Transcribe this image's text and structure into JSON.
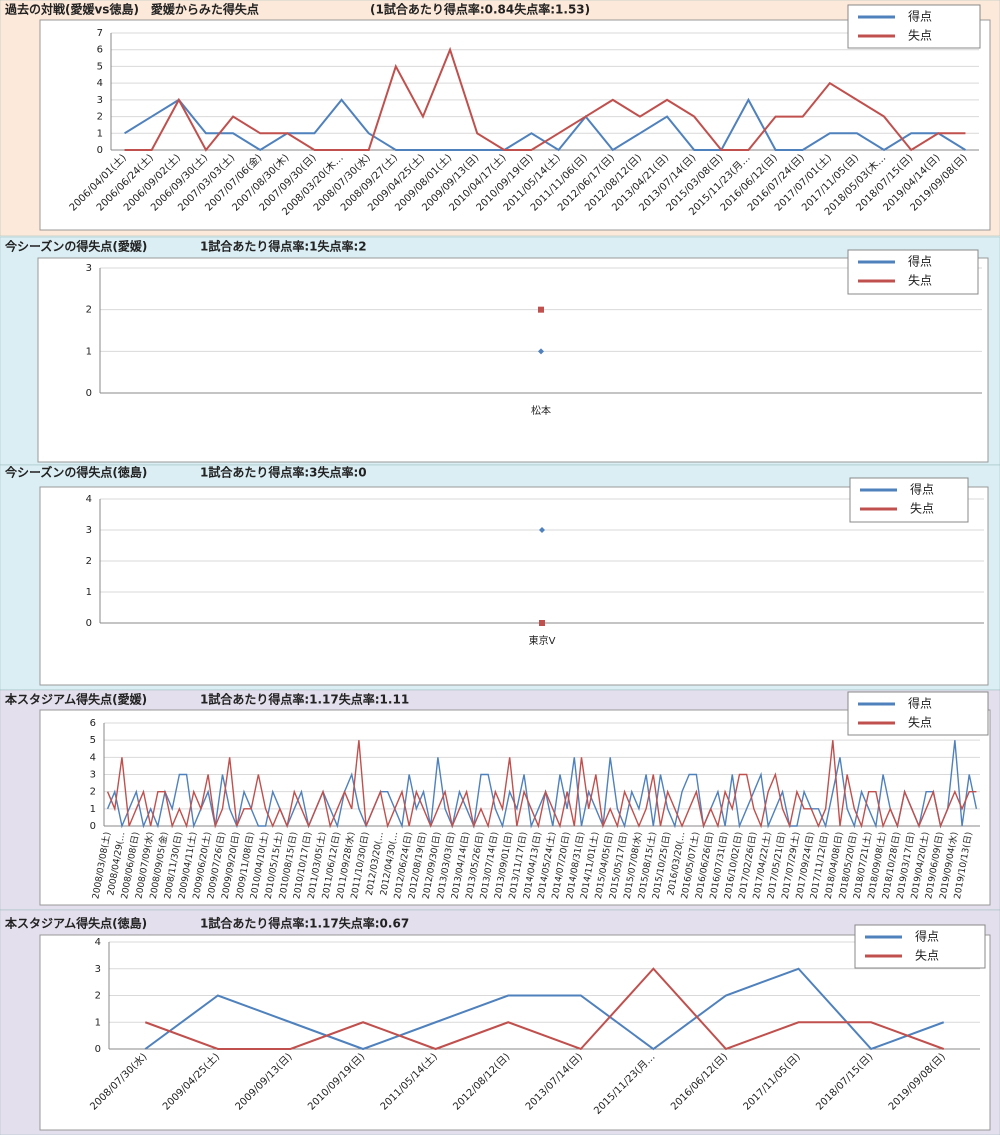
{
  "chart_data": [
    {
      "type": "line",
      "title": "過去の対戦(愛媛vs徳島)　愛媛からみた得失点",
      "subtitle": "(1試合あたり得点率:0.84失点率:1.53)",
      "categories": [
        "2006/04/01(土)",
        "2006/06/24(土)",
        "2006/09/02(土)",
        "2006/09/30(土)",
        "2007/03/03(土)",
        "2007/07/06(金)",
        "2007/08/30(木)",
        "2007/09/30(日)",
        "2008/03/20(木…",
        "2008/07/30(水)",
        "2008/09/27(土)",
        "2009/04/25(土)",
        "2009/08/01(土)",
        "2009/09/13(日)",
        "2010/04/17(土)",
        "2010/09/19(日)",
        "2011/05/14(土)",
        "2011/11/06(日)",
        "2012/06/17(日)",
        "2012/08/12(日)",
        "2013/04/21(日)",
        "2013/07/14(日)",
        "2015/03/08(日)",
        "2015/11/23(月…",
        "2016/06/12(日)",
        "2016/07/24(日)",
        "2017/07/01(土)",
        "2017/11/05(日)",
        "2018/05/03(木…",
        "2018/07/15(日)",
        "2019/04/14(日)",
        "2019/09/08(日)"
      ],
      "series": [
        {
          "name": "得点",
          "color": "#4f81bd",
          "values": [
            1,
            2,
            3,
            1,
            1,
            0,
            1,
            1,
            3,
            1,
            0,
            0,
            0,
            0,
            0,
            1,
            0,
            2,
            0,
            1,
            2,
            0,
            0,
            3,
            0,
            0,
            1,
            1,
            0,
            1,
            1,
            0
          ]
        },
        {
          "name": "失点",
          "color": "#c0504d",
          "values": [
            0,
            0,
            3,
            0,
            2,
            1,
            1,
            0,
            0,
            0,
            5,
            2,
            6,
            1,
            0,
            0,
            1,
            2,
            3,
            2,
            3,
            2,
            0,
            0,
            2,
            2,
            4,
            3,
            2,
            0,
            1,
            1
          ]
        }
      ],
      "ylim": [
        0,
        7
      ],
      "yticks": [
        0,
        1,
        2,
        3,
        4,
        5,
        6,
        7
      ],
      "grid": true
    },
    {
      "type": "line",
      "title": "今シーズンの得失点(愛媛)",
      "subtitle": "1試合あたり得点率:1失点率:2",
      "categories": [
        "松本"
      ],
      "markers": true,
      "series": [
        {
          "name": "得点",
          "color": "#4f81bd",
          "marker": "diamond",
          "values": [
            1
          ]
        },
        {
          "name": "失点",
          "color": "#c0504d",
          "marker": "square",
          "values": [
            2
          ]
        }
      ],
      "ylim": [
        0,
        3
      ],
      "yticks": [
        0,
        1,
        2,
        3
      ],
      "grid": true
    },
    {
      "type": "line",
      "title": "今シーズンの得失点(徳島)",
      "subtitle": "1試合あたり得点率:3失点率:0",
      "categories": [
        "東京V"
      ],
      "markers": true,
      "series": [
        {
          "name": "得点",
          "color": "#4f81bd",
          "marker": "diamond",
          "values": [
            3
          ]
        },
        {
          "name": "失点",
          "color": "#c0504d",
          "marker": "square",
          "values": [
            0
          ]
        }
      ],
      "ylim": [
        0,
        4
      ],
      "yticks": [
        0,
        1,
        2,
        3,
        4
      ],
      "grid": true
    },
    {
      "type": "line",
      "title": "本スタジアム得失点(愛媛)",
      "subtitle": "1試合あたり得点率:1.17失点率:1.11",
      "categories": [
        "2008/03/08(土)",
        null,
        "2008/04/29(…",
        null,
        "2008/06/08(日)",
        null,
        "2008/07/09(水)",
        null,
        "2008/09/05(金)",
        null,
        "2008/11/30(日)",
        null,
        "2009/04/11(土)",
        null,
        "2009/06/20(土)",
        null,
        "2009/07/26(日)",
        null,
        "2009/09/20(日)",
        null,
        "2009/11/08(日)",
        null,
        "2010/04/10(土)",
        null,
        "2010/05/15(土)",
        null,
        "2010/08/15(日)",
        null,
        "2010/10/17(日)",
        null,
        "2011/03/05(土)",
        null,
        "2011/06/12(日)",
        null,
        "2011/09/28(水)",
        null,
        "2011/10/30(日)",
        null,
        "2012/03/20(…",
        null,
        "2012/04/30(…",
        null,
        "2012/06/24(日)",
        null,
        "2012/08/19(日)",
        null,
        "2012/09/30(日)",
        null,
        "2013/03/03(日)",
        null,
        "2013/04/14(日)",
        null,
        "2013/05/26(日)",
        null,
        "2013/07/14(日)",
        null,
        "2013/09/01(日)",
        null,
        "2013/11/17(日)",
        null,
        "2014/04/13(日)",
        null,
        "2014/05/24(土)",
        null,
        "2014/07/20(日)",
        null,
        "2014/08/31(日)",
        null,
        "2014/11/01(土)",
        null,
        "2015/04/05(日)",
        null,
        "2015/05/17(日)",
        null,
        "2015/07/08(水)",
        null,
        "2015/08/15(土)",
        null,
        "2015/10/25(日)",
        null,
        "2016/03/20(…",
        null,
        "2016/05/07(土)",
        null,
        "2016/06/26(日)",
        null,
        "2016/07/31(日)",
        null,
        "2016/10/02(日)",
        null,
        "2017/02/26(日)",
        null,
        "2017/04/22(土)",
        null,
        "2017/05/21(日)",
        null,
        "2017/07/29(土)",
        null,
        "2017/09/24(日)",
        null,
        "2017/11/12(日)",
        null,
        "2018/04/08(日)",
        null,
        "2018/05/20(日)",
        null,
        "2018/07/21(土)",
        null,
        "2018/09/08(土)",
        null,
        "2018/10/28(日)",
        null,
        "2019/03/17(日)",
        null,
        "2019/04/20(土)",
        null,
        "2019/06/09(日)",
        null,
        "2019/09/04(水)",
        null,
        "2019/10/13(日)",
        null
      ],
      "series": [
        {
          "name": "得点",
          "color": "#4f81bd",
          "values": [
            1,
            2,
            0,
            1,
            2,
            0,
            1,
            0,
            2,
            1,
            3,
            3,
            0,
            1,
            2,
            0,
            3,
            1,
            0,
            2,
            1,
            0,
            0,
            2,
            1,
            0,
            1,
            2,
            0,
            1,
            2,
            1,
            0,
            2,
            3,
            1,
            0,
            1,
            2,
            2,
            1,
            0,
            3,
            1,
            2,
            0,
            4,
            1,
            0,
            2,
            1,
            0,
            3,
            3,
            1,
            0,
            2,
            1,
            3,
            0,
            1,
            2,
            0,
            3,
            1,
            4,
            0,
            2,
            1,
            0,
            4,
            1,
            0,
            2,
            1,
            3,
            0,
            3,
            1,
            0,
            2,
            3,
            3,
            0,
            1,
            2,
            0,
            3,
            0,
            1,
            2,
            3,
            0,
            1,
            2,
            0,
            0,
            2,
            1,
            1,
            0,
            2,
            4,
            1,
            0,
            2,
            1,
            0,
            3,
            1,
            0,
            2,
            1,
            0,
            2,
            2,
            0,
            1,
            5,
            0,
            3,
            1
          ]
        },
        {
          "name": "失点",
          "color": "#c0504d",
          "values": [
            2,
            1,
            4,
            0,
            1,
            2,
            0,
            2,
            2,
            0,
            1,
            0,
            2,
            1,
            3,
            0,
            1,
            4,
            0,
            1,
            1,
            3,
            1,
            0,
            1,
            0,
            2,
            1,
            0,
            1,
            2,
            0,
            1,
            2,
            1,
            5,
            0,
            1,
            2,
            0,
            1,
            2,
            0,
            2,
            1,
            0,
            1,
            2,
            0,
            1,
            2,
            0,
            1,
            0,
            2,
            1,
            4,
            0,
            2,
            1,
            0,
            2,
            1,
            0,
            2,
            0,
            4,
            1,
            3,
            0,
            1,
            0,
            2,
            1,
            0,
            1,
            3,
            0,
            2,
            1,
            0,
            1,
            2,
            0,
            1,
            0,
            2,
            1,
            3,
            3,
            1,
            0,
            2,
            3,
            1,
            0,
            2,
            1,
            1,
            0,
            1,
            5,
            0,
            3,
            1,
            0,
            2,
            2,
            0,
            1,
            0,
            2,
            1,
            0,
            1,
            2,
            0,
            1,
            2,
            1,
            2,
            2
          ]
        }
      ],
      "ylim": [
        0,
        6
      ],
      "yticks": [
        0,
        1,
        2,
        3,
        4,
        5,
        6
      ],
      "grid": true
    },
    {
      "type": "line",
      "title": "本スタジアム得失点(徳島)",
      "subtitle": "1試合あたり得点率:1.17失点率:0.67",
      "categories": [
        "2008/07/30(水)",
        "2009/04/25(土)",
        "2009/09/13(日)",
        "2010/09/19(日)",
        "2011/05/14(土)",
        "2012/08/12(日)",
        "2013/07/14(日)",
        "2015/11/23(月…",
        "2016/06/12(日)",
        "2017/11/05(日)",
        "2018/07/15(日)",
        "2019/09/08(日)"
      ],
      "series": [
        {
          "name": "得点",
          "color": "#4f81bd",
          "values": [
            0,
            2,
            1,
            0,
            1,
            2,
            2,
            0,
            2,
            3,
            0,
            1
          ]
        },
        {
          "name": "失点",
          "color": "#c0504d",
          "values": [
            1,
            0,
            0,
            1,
            0,
            1,
            0,
            3,
            0,
            1,
            1,
            0
          ]
        }
      ],
      "ylim": [
        0,
        4
      ],
      "yticks": [
        0,
        1,
        2,
        3,
        4
      ],
      "grid": true
    }
  ]
}
